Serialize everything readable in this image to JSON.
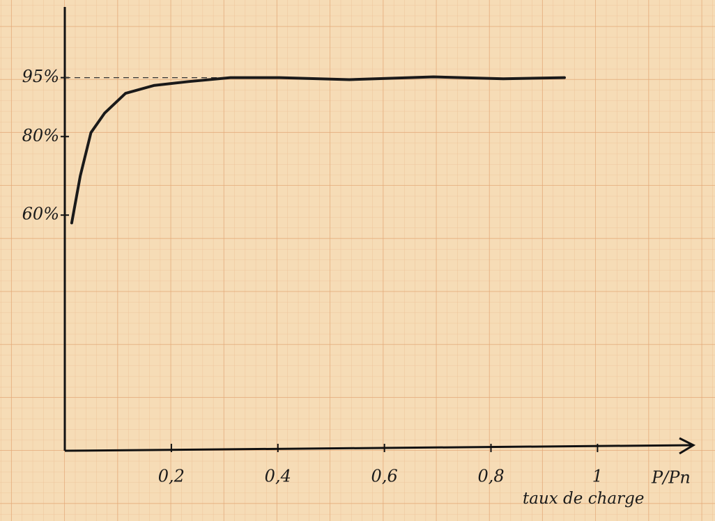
{
  "chart_data": {
    "type": "line",
    "x_label": "P/Pn",
    "x_sublabel": "taux de charge",
    "x": [
      0.013,
      0.029,
      0.049,
      0.075,
      0.114,
      0.167,
      0.232,
      0.311,
      0.403,
      0.534,
      0.692,
      0.823,
      0.938
    ],
    "series": [
      {
        "color": "#1a1a1a",
        "values": [
          58,
          70,
          81,
          86,
          91,
          93,
          94,
          95,
          95,
          94.5,
          95.2,
          94.7,
          95
        ]
      }
    ],
    "xlim": [
      0,
      1.18
    ],
    "ylim": [
      0,
      113
    ],
    "xticks": [
      {
        "value": 0.2,
        "label": "0,2"
      },
      {
        "value": 0.4,
        "label": "0,4"
      },
      {
        "value": 0.6,
        "label": "0,6"
      },
      {
        "value": 0.8,
        "label": "0,8"
      },
      1
    ],
    "yticks": [
      {
        "value": 95,
        "label": "95%"
      },
      {
        "value": 80,
        "label": "80%"
      },
      {
        "value": 60,
        "label": "60%"
      }
    ],
    "reference_line": 95
  }
}
